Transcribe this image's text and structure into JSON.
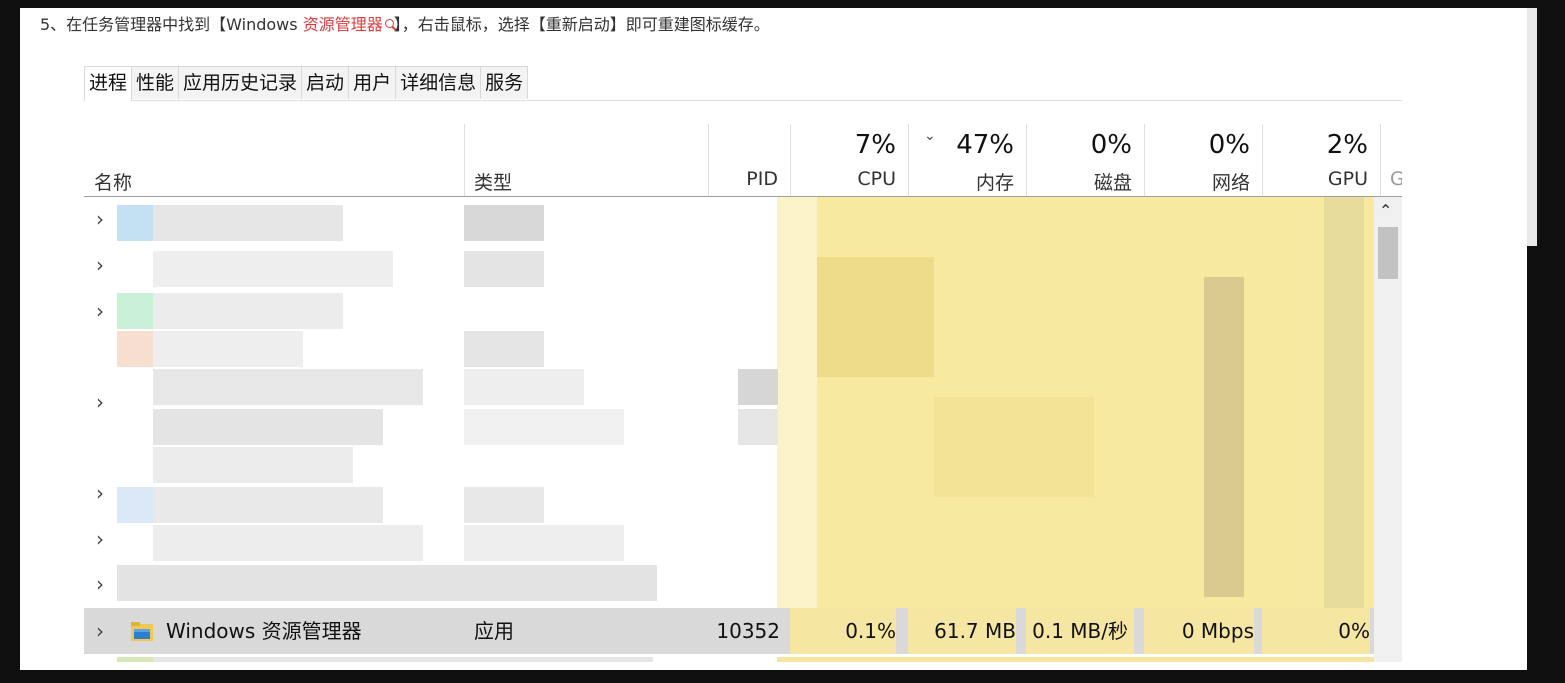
{
  "instruction": {
    "prefix": "5、在任务管理器中找到【Windows ",
    "keyword": "资源管理器",
    "suffix": "】，右击鼠标，选择【重新启动】即可重建图标缓存。"
  },
  "tabs": [
    "进程",
    "性能",
    "应用历史记录",
    "启动",
    "用户",
    "详细信息",
    "服务"
  ],
  "columns": {
    "name": "名称",
    "type": "类型",
    "pid": "PID",
    "cpu": {
      "pct": "7%",
      "label": "CPU"
    },
    "memory": {
      "pct": "47%",
      "label": "内存"
    },
    "disk": {
      "pct": "0%",
      "label": "磁盘"
    },
    "network": {
      "pct": "0%",
      "label": "网络"
    },
    "gpu": {
      "pct": "2%",
      "label": "GPU"
    },
    "gpu_engine": {
      "label": "G"
    }
  },
  "explorer_row": {
    "name": "Windows 资源管理器",
    "type": "应用",
    "pid": "10352",
    "cpu": "0.1%",
    "memory": "61.7 MB",
    "disk": "0.1 MB/秒",
    "network": "0 Mbps",
    "gpu": "0%"
  },
  "colors": {
    "keyword": "#e4393c",
    "selected_row": "#d9d9d9",
    "heat": "#f7e9a0"
  },
  "icons": [
    "chevron-right-icon",
    "folder-icon",
    "chevron-up-icon",
    "magnifier-icon"
  ]
}
